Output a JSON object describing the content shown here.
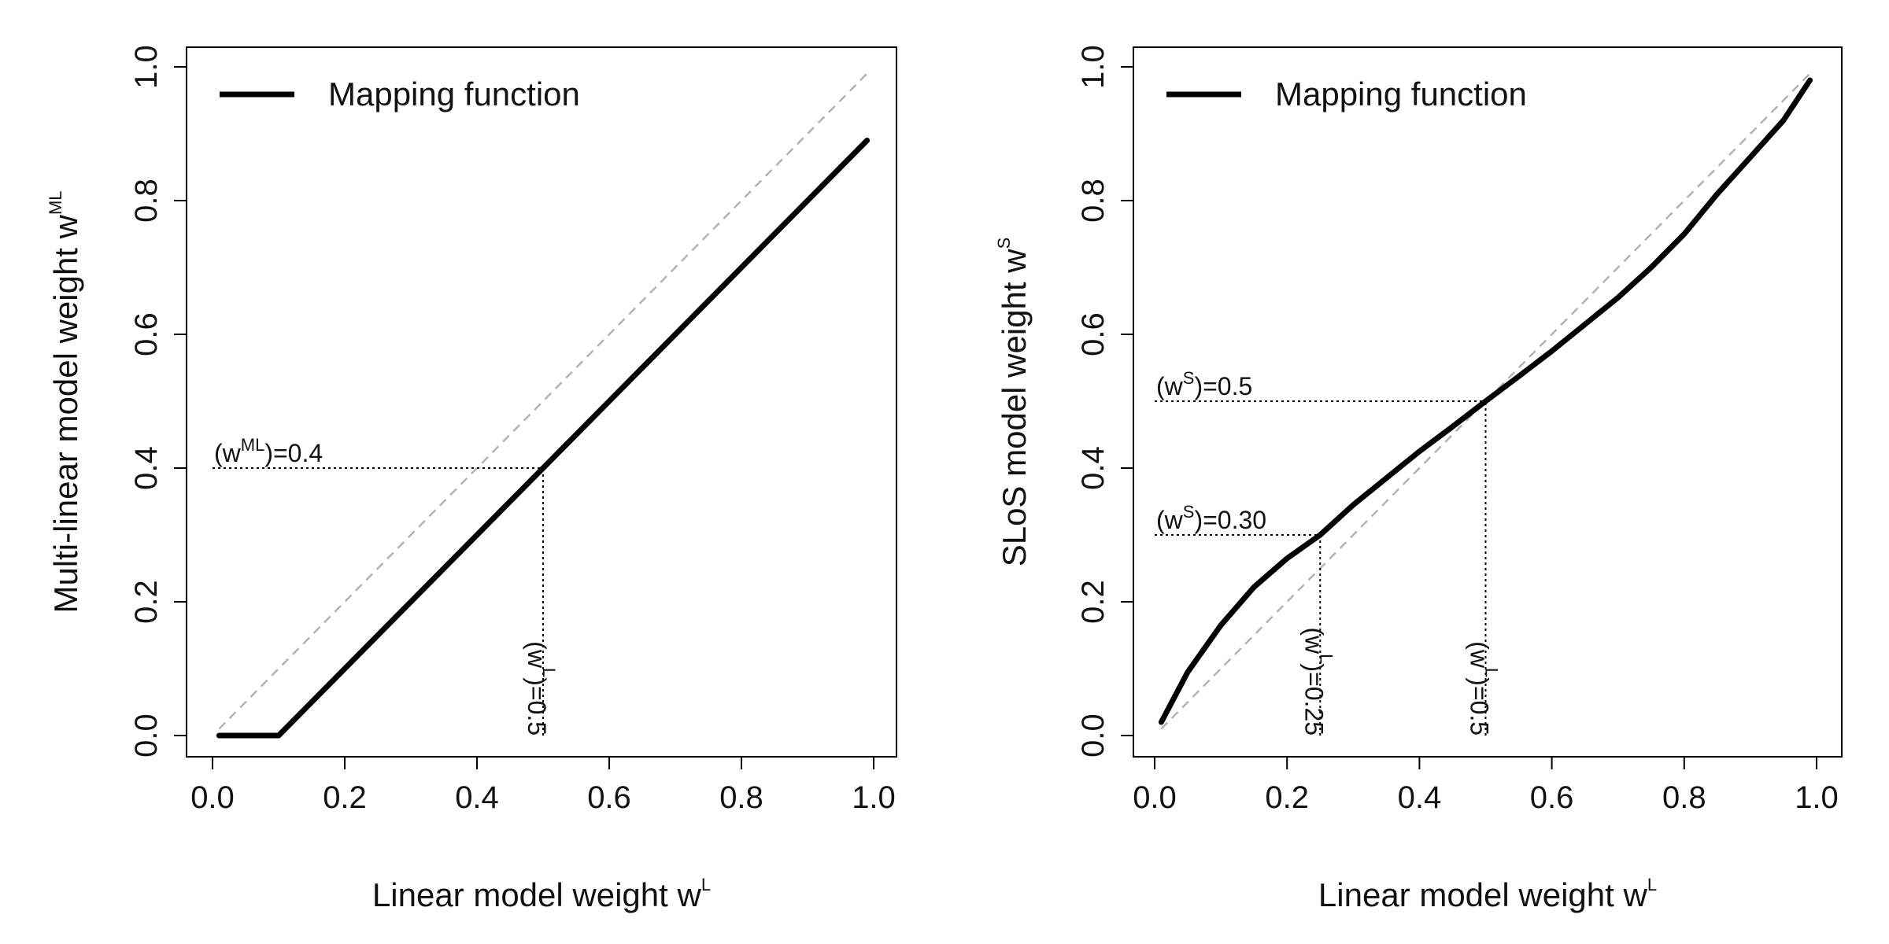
{
  "chart_data": [
    {
      "type": "line",
      "panel": "left",
      "title": "",
      "xlabel": "Linear model weight w",
      "xlabel_sup": "L",
      "ylabel": "Multi-linear model weight w",
      "ylabel_sup": "ML",
      "xlim": [
        0.0,
        1.0
      ],
      "ylim": [
        0.0,
        1.0
      ],
      "xticks": [
        "0.0",
        "0.2",
        "0.4",
        "0.6",
        "0.8",
        "1.0"
      ],
      "yticks": [
        "0.0",
        "0.2",
        "0.4",
        "0.6",
        "0.8",
        "1.0"
      ],
      "legend": {
        "position": "top-left",
        "label": "Mapping function"
      },
      "series": [
        {
          "name": "Mapping function",
          "x": [
            0.01,
            0.1,
            0.99
          ],
          "y": [
            0.0,
            0.0,
            0.89
          ]
        }
      ],
      "reference_line": {
        "name": "identity",
        "x": [
          0.01,
          0.99
        ],
        "y": [
          0.01,
          0.99
        ]
      },
      "annotations": [
        {
          "kind": "horizontal",
          "x0": 0.0,
          "x1": 0.5,
          "y": 0.4,
          "prefix": "(w",
          "sup": "ML",
          "suffix": ")=0.4"
        },
        {
          "kind": "vertical",
          "x": 0.5,
          "y0": 0.0,
          "y1": 0.4,
          "prefix": "(w",
          "sup": "L",
          "suffix": ")=0.5"
        }
      ]
    },
    {
      "type": "line",
      "panel": "right",
      "title": "",
      "xlabel": "Linear model weight w",
      "xlabel_sup": "L",
      "ylabel": "SLoS model weight w",
      "ylabel_sup": "S",
      "xlim": [
        0.0,
        1.0
      ],
      "ylim": [
        0.0,
        1.0
      ],
      "xticks": [
        "0.0",
        "0.2",
        "0.4",
        "0.6",
        "0.8",
        "1.0"
      ],
      "yticks": [
        "0.0",
        "0.2",
        "0.4",
        "0.6",
        "0.8",
        "1.0"
      ],
      "legend": {
        "position": "top-left",
        "label": "Mapping function"
      },
      "series": [
        {
          "name": "Mapping function",
          "x": [
            0.01,
            0.05,
            0.1,
            0.15,
            0.2,
            0.25,
            0.3,
            0.35,
            0.4,
            0.45,
            0.5,
            0.55,
            0.6,
            0.65,
            0.7,
            0.75,
            0.8,
            0.85,
            0.9,
            0.95,
            0.99
          ],
          "y": [
            0.02,
            0.095,
            0.165,
            0.222,
            0.265,
            0.3,
            0.345,
            0.385,
            0.425,
            0.462,
            0.5,
            0.537,
            0.575,
            0.615,
            0.655,
            0.7,
            0.75,
            0.81,
            0.865,
            0.92,
            0.98
          ]
        }
      ],
      "reference_line": {
        "name": "identity",
        "x": [
          0.01,
          0.99
        ],
        "y": [
          0.01,
          0.99
        ]
      },
      "annotations": [
        {
          "kind": "horizontal",
          "x0": 0.0,
          "x1": 0.5,
          "y": 0.5,
          "prefix": "(w",
          "sup": "S",
          "suffix": ")=0.5"
        },
        {
          "kind": "horizontal",
          "x0": 0.0,
          "x1": 0.25,
          "y": 0.3,
          "prefix": "(w",
          "sup": "S",
          "suffix": ")=0.30"
        },
        {
          "kind": "vertical",
          "x": 0.25,
          "y0": 0.0,
          "y1": 0.3,
          "prefix": "(w",
          "sup": "L",
          "suffix": ")=0.25"
        },
        {
          "kind": "vertical",
          "x": 0.5,
          "y0": 0.0,
          "y1": 0.5,
          "prefix": "(w",
          "sup": "L",
          "suffix": ")=0.5"
        }
      ]
    }
  ]
}
